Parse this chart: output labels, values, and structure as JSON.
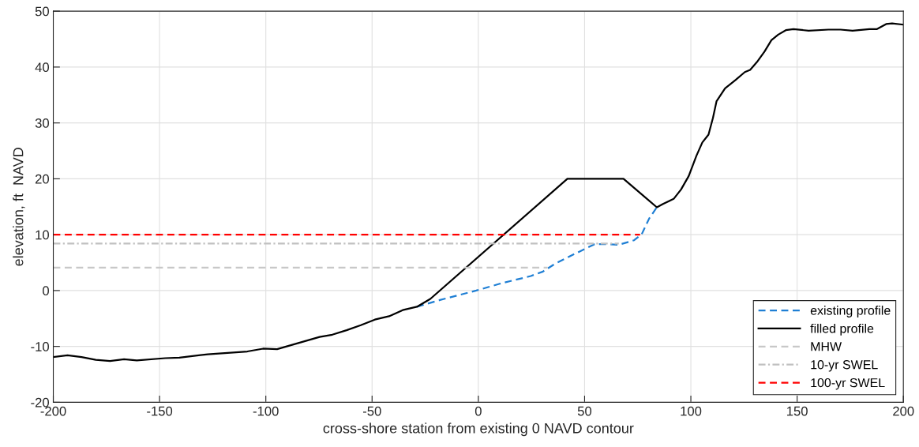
{
  "chart_data": {
    "type": "line",
    "xlabel": "cross-shore station from existing 0 NAVD contour",
    "ylabel": "elevation, ft  NAVD",
    "xlim": [
      -200,
      200
    ],
    "xticks": [
      -200,
      -150,
      -100,
      -50,
      0,
      50,
      100,
      150,
      200
    ],
    "ylim": [
      -20,
      50
    ],
    "yticks": [
      -20,
      -10,
      0,
      10,
      20,
      30,
      40,
      50
    ],
    "grid": true,
    "legend": "bottom right",
    "marker": "none",
    "series": [
      {
        "name": "existing profile",
        "color": "#1f7fd4",
        "line_style": "dashed",
        "x": [
          -28.9,
          -18.1,
          -1,
          10.4,
          24.7,
          30.4,
          36.1,
          46.1,
          54.7,
          60.4,
          66.1,
          73.3,
          76.9,
          80.4,
          84
        ],
        "values": [
          -2.9,
          -1.7,
          0,
          1.25,
          2.6,
          3.4,
          4.8,
          6.7,
          8.3,
          8.3,
          8.2,
          9.0,
          10.1,
          12.9,
          14.9
        ]
      },
      {
        "name": "filled profile",
        "color": "#000000",
        "line_style": "solid",
        "x": [
          -200,
          -193.3,
          -186.7,
          -180,
          -173.3,
          -166.7,
          -160.7,
          -147.3,
          -140.7,
          -127.3,
          -108.7,
          -101.3,
          -94.7,
          -84.7,
          -74.7,
          -68.7,
          -62,
          -55.3,
          -48.7,
          -42,
          -35.6,
          -28.9,
          -22.6,
          41.9,
          68.3,
          84,
          86.9,
          91.9,
          95.4,
          99,
          102.6,
          105.4,
          108.3,
          110.4,
          112.1,
          116.1,
          121.1,
          125.4,
          127.9,
          131.1,
          134.7,
          137.9,
          141.1,
          144.7,
          148.3,
          155.4,
          164.7,
          170.4,
          176.1,
          184,
          187.6,
          191.9,
          194.7,
          199.7
        ],
        "values": [
          -11.9,
          -11.6,
          -11.9,
          -12.4,
          -12.6,
          -12.3,
          -12.5,
          -12.1,
          -12.0,
          -11.4,
          -10.9,
          -10.4,
          -10.5,
          -9.4,
          -8.3,
          -7.9,
          -7.1,
          -6.2,
          -5.2,
          -4.6,
          -3.5,
          -2.9,
          -1.5,
          20,
          20,
          14.9,
          15.5,
          16.4,
          18.1,
          20.5,
          24.1,
          26.5,
          27.9,
          30.9,
          33.9,
          36.2,
          37.7,
          39.1,
          39.5,
          40.9,
          42.8,
          44.8,
          45.8,
          46.6,
          46.8,
          46.5,
          46.7,
          46.7,
          46.5,
          46.8,
          46.8,
          47.7,
          47.8,
          47.6
        ]
      },
      {
        "name": "MHW",
        "color": "#c8c8c8",
        "line_style": "dashed",
        "x": [
          -200,
          32.6
        ],
        "values": [
          4.1,
          4.1
        ]
      },
      {
        "name": "10-yr SWEL",
        "color": "#c0c0c0",
        "line_style": "dashdot",
        "x": [
          -200,
          66.1
        ],
        "values": [
          8.4,
          8.4
        ]
      },
      {
        "name": "100-yr SWEL",
        "color": "#ff0000",
        "line_style": "dashed",
        "x": [
          -200,
          76.1
        ],
        "values": [
          10,
          10
        ]
      }
    ]
  }
}
